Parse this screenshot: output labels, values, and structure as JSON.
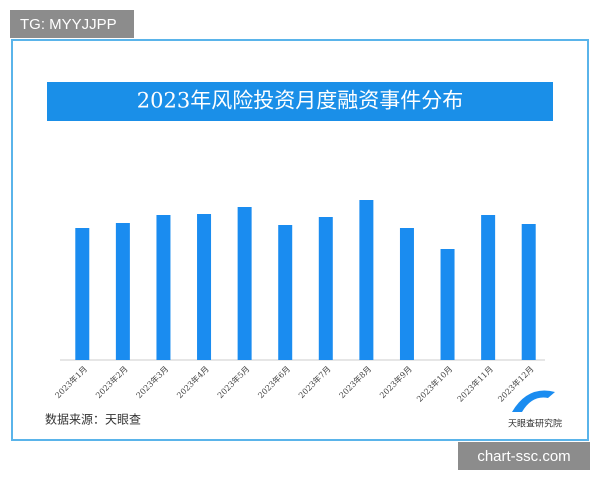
{
  "watermark": "TG: MYYJJPP",
  "site": "chart-ssc.com",
  "chart_data": {
    "type": "bar",
    "title": "2023年风险投资月度融资事件分布",
    "categories": [
      "2023年1月",
      "2023年2月",
      "2023年3月",
      "2023年4月",
      "2023年5月",
      "2023年6月",
      "2023年7月",
      "2023年8月",
      "2023年9月",
      "2023年10月",
      "2023年11月",
      "2023年12月"
    ],
    "values": [
      132,
      137,
      145,
      146,
      153,
      135,
      143,
      160,
      132,
      111,
      145,
      136
    ],
    "color": "#1a8cf0",
    "ylim": [
      0,
      160
    ],
    "source": "数据来源：天眼查",
    "logo_text": "天眼查研究院"
  }
}
